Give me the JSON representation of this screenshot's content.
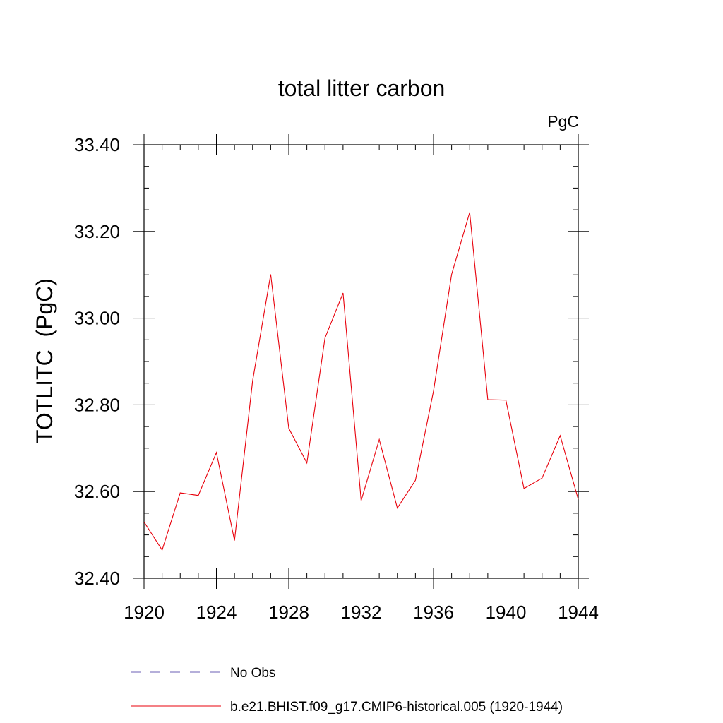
{
  "chart_data": {
    "type": "line",
    "title": "total litter carbon",
    "units_label": "PgC",
    "ylabel": "TOTLITC  (PgC)",
    "xlabel": "",
    "xlim": [
      1920,
      1944
    ],
    "ylim": [
      32.4,
      33.4
    ],
    "x_ticks": [
      "1920",
      "1924",
      "1928",
      "1932",
      "1936",
      "1940",
      "1944"
    ],
    "y_ticks": [
      "32.40",
      "32.60",
      "32.80",
      "33.00",
      "33.20",
      "33.40"
    ],
    "grid": false,
    "legend_position": "bottom",
    "series": [
      {
        "name": "No Obs",
        "color": "#6b5fb5",
        "dash": "dashed",
        "x": [],
        "values": []
      },
      {
        "name": "b.e21.BHIST.f09_g17.CMIP6-historical.005 (1920-1944)",
        "color": "#e8000b",
        "dash": "solid",
        "x": [
          1920,
          1921,
          1922,
          1923,
          1924,
          1925,
          1926,
          1927,
          1928,
          1929,
          1930,
          1931,
          1932,
          1933,
          1934,
          1935,
          1936,
          1937,
          1938,
          1939,
          1940,
          1941,
          1942,
          1943,
          1944
        ],
        "values": [
          32.53,
          32.465,
          32.597,
          32.591,
          32.69,
          32.487,
          32.855,
          33.101,
          32.746,
          32.666,
          32.954,
          33.058,
          32.579,
          32.72,
          32.562,
          32.626,
          32.832,
          33.101,
          33.244,
          32.812,
          32.811,
          32.607,
          32.631,
          32.729,
          32.582
        ]
      }
    ]
  }
}
